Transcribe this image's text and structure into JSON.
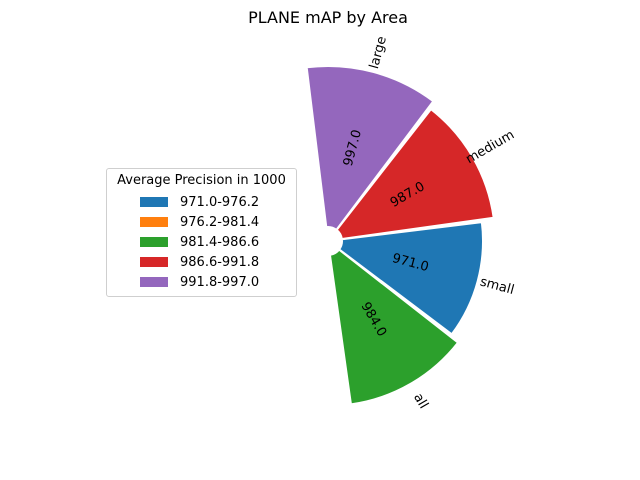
{
  "chart_data": {
    "type": "pie",
    "title": "PLANE mAP by Area",
    "categories": [
      "all",
      "small",
      "medium",
      "large"
    ],
    "values": [
      984.0,
      971.0,
      987.0,
      997.0
    ],
    "value_labels": [
      "984.0",
      "971.0",
      "987.0",
      "997.0"
    ],
    "colors": [
      "#2ca02c",
      "#1f77b4",
      "#d62728",
      "#9467bd"
    ],
    "legend": {
      "title": "Average Precision in 1000",
      "placement": "center-left",
      "entries": [
        {
          "label": "971.0-976.2",
          "color": "#1f77b4"
        },
        {
          "label": "976.2-981.4",
          "color": "#ff7f0e"
        },
        {
          "label": "981.4-986.6",
          "color": "#2ca02c"
        },
        {
          "label": "986.6-991.8",
          "color": "#d62728"
        },
        {
          "label": "991.8-997.0",
          "color": "#9467bd"
        }
      ]
    }
  }
}
